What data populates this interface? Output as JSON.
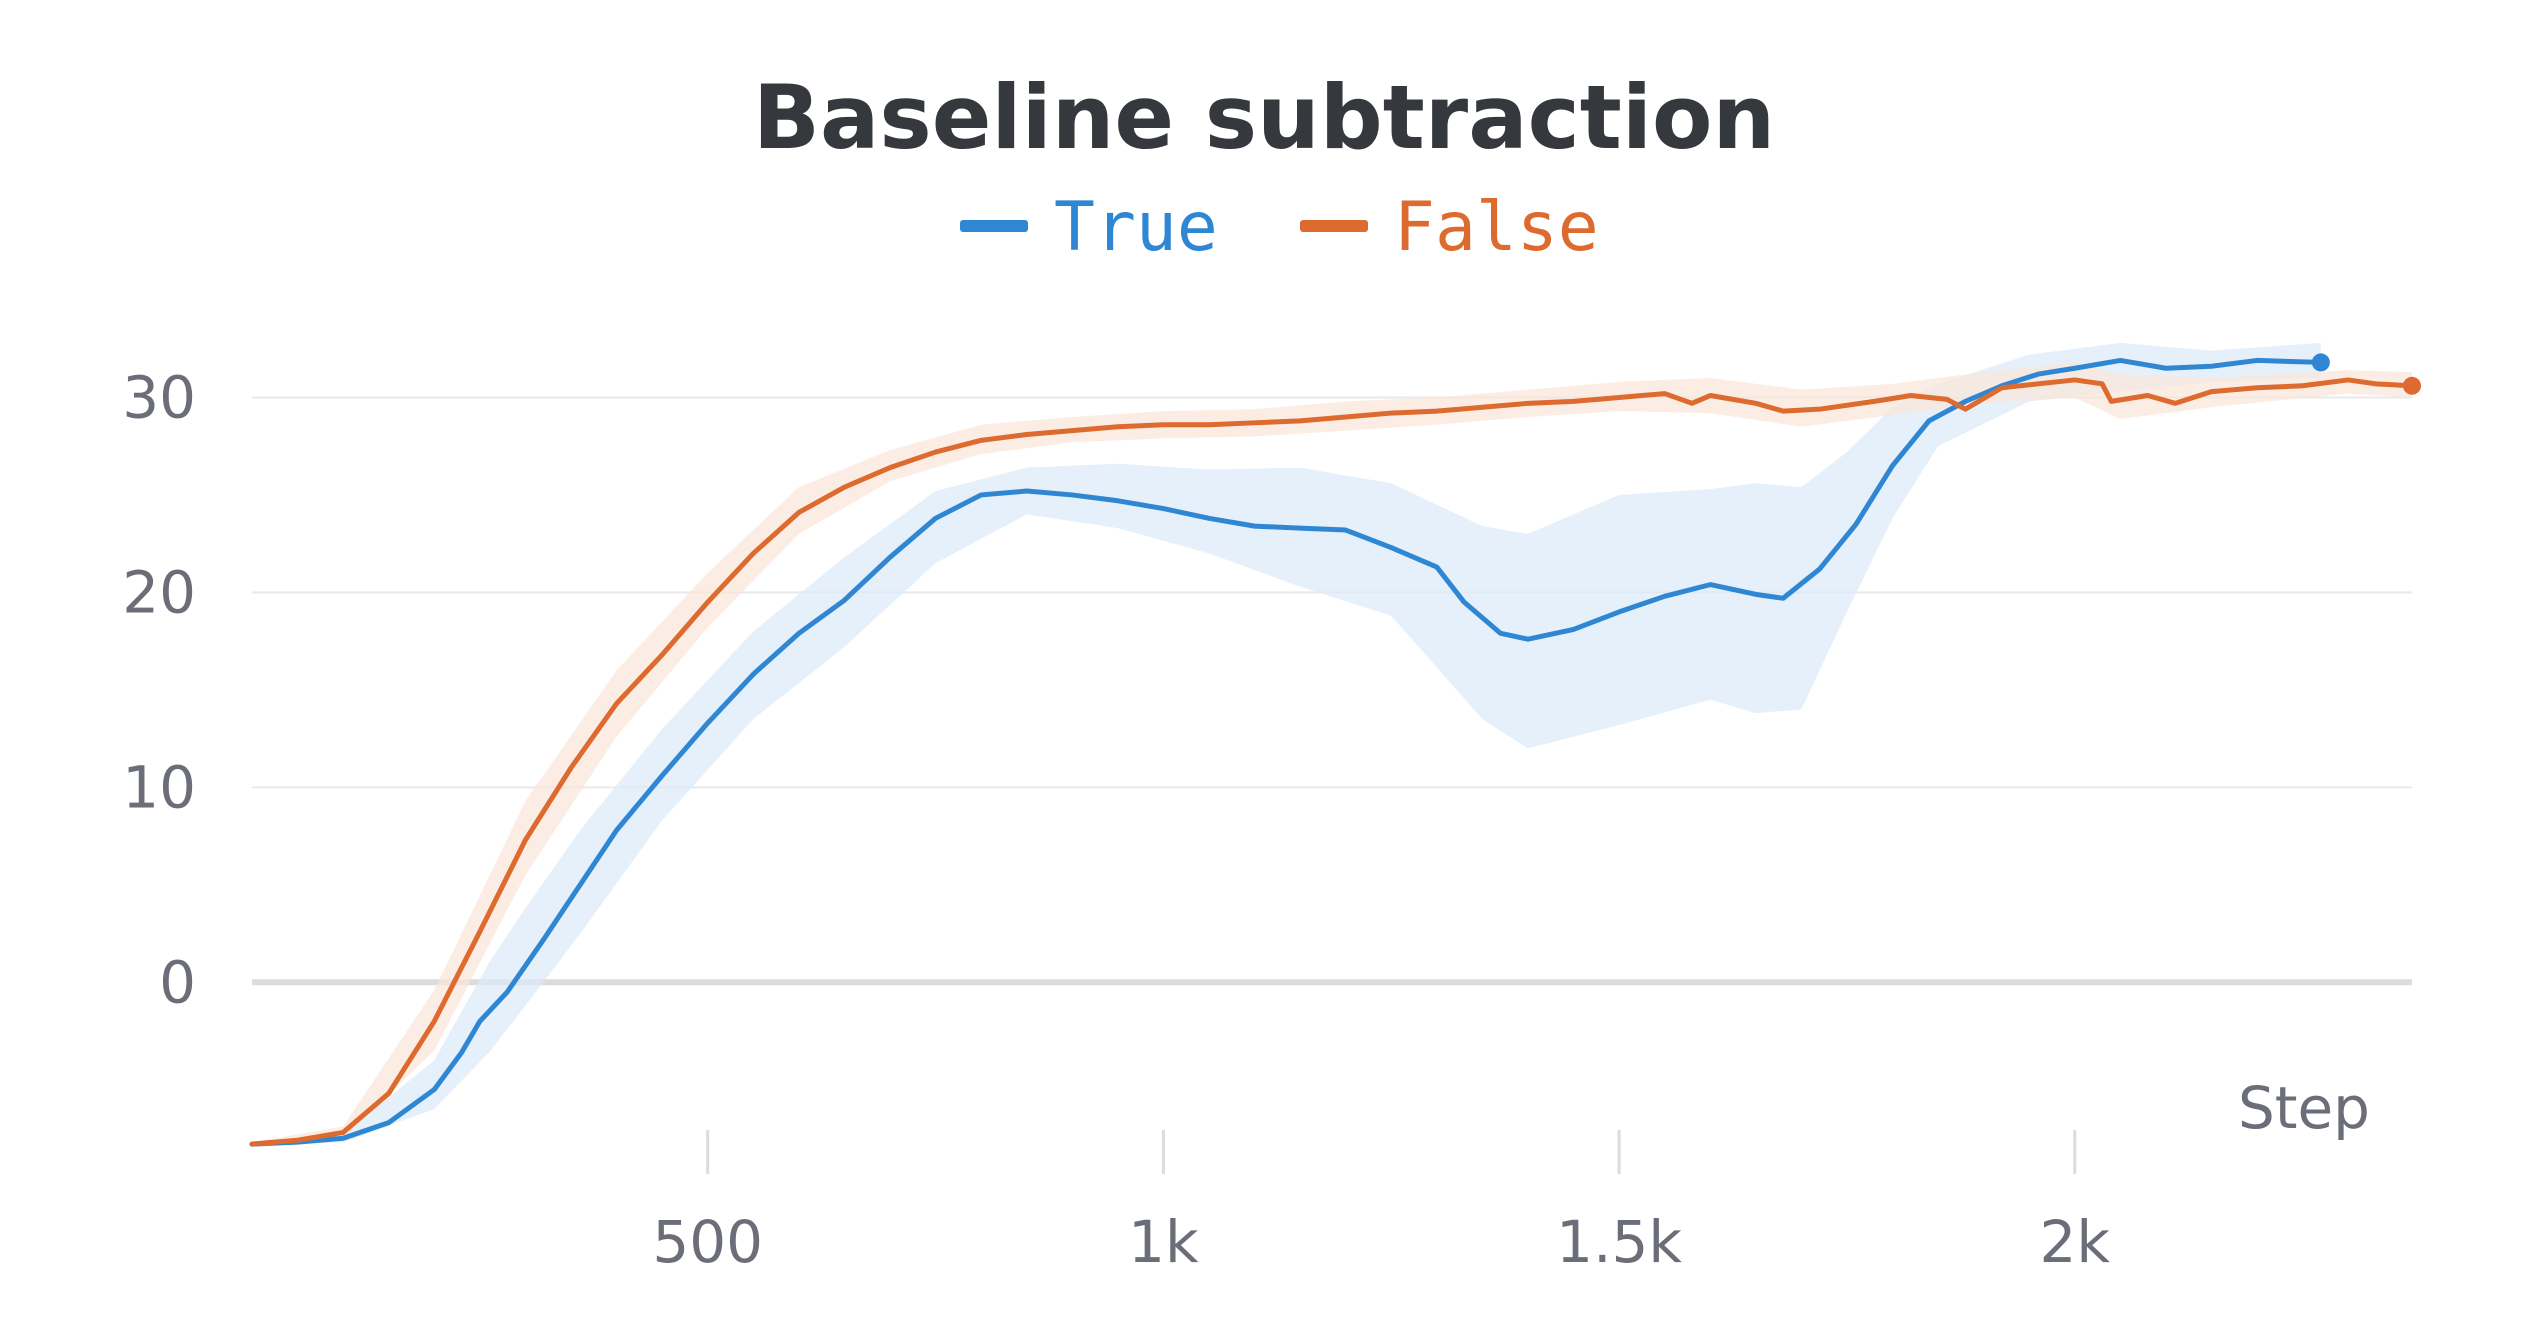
{
  "chart_data": {
    "type": "line",
    "title": "Baseline subtraction",
    "xlabel": "Step",
    "ylabel": "",
    "xlim": [
      0,
      2370
    ],
    "ylim": [
      -8.5,
      35
    ],
    "x_ticks": [
      500,
      1000,
      1500,
      2000
    ],
    "x_tick_labels": [
      "500",
      "1k",
      "1.5k",
      "2k"
    ],
    "y_ticks": [
      0,
      10,
      20,
      30
    ],
    "y_tick_labels": [
      "0",
      "10",
      "20",
      "30"
    ],
    "grid": "horizontal",
    "legend_position": "top-center",
    "series": [
      {
        "name": "True",
        "color": "#2f87d4",
        "band_color": "#dbe9f8",
        "points": [
          [
            0,
            -8.3
          ],
          [
            50,
            -8.2
          ],
          [
            100,
            -8.0
          ],
          [
            150,
            -7.2
          ],
          [
            200,
            -5.5
          ],
          [
            230,
            -3.6
          ],
          [
            250,
            -2.0
          ],
          [
            280,
            -0.5
          ],
          [
            320,
            2.2
          ],
          [
            360,
            5.0
          ],
          [
            400,
            7.8
          ],
          [
            450,
            10.6
          ],
          [
            500,
            13.3
          ],
          [
            550,
            15.8
          ],
          [
            600,
            17.9
          ],
          [
            650,
            19.6
          ],
          [
            700,
            21.8
          ],
          [
            750,
            23.8
          ],
          [
            800,
            25.0
          ],
          [
            850,
            25.2
          ],
          [
            900,
            25.0
          ],
          [
            950,
            24.7
          ],
          [
            1000,
            24.3
          ],
          [
            1050,
            23.8
          ],
          [
            1100,
            23.4
          ],
          [
            1150,
            23.3
          ],
          [
            1200,
            23.2
          ],
          [
            1250,
            22.3
          ],
          [
            1300,
            21.3
          ],
          [
            1330,
            19.5
          ],
          [
            1370,
            17.9
          ],
          [
            1400,
            17.6
          ],
          [
            1450,
            18.1
          ],
          [
            1500,
            19.0
          ],
          [
            1550,
            19.8
          ],
          [
            1600,
            20.4
          ],
          [
            1650,
            19.9
          ],
          [
            1680,
            19.7
          ],
          [
            1720,
            21.2
          ],
          [
            1760,
            23.5
          ],
          [
            1800,
            26.5
          ],
          [
            1840,
            28.8
          ],
          [
            1880,
            29.8
          ],
          [
            1920,
            30.6
          ],
          [
            1960,
            31.2
          ],
          [
            2000,
            31.5
          ],
          [
            2050,
            31.9
          ],
          [
            2100,
            31.5
          ],
          [
            2150,
            31.6
          ],
          [
            2200,
            31.9
          ],
          [
            2270,
            31.8
          ]
        ],
        "band": [
          [
            0,
            -8.4,
            -8.2
          ],
          [
            100,
            -8.2,
            -7.8
          ],
          [
            200,
            -6.5,
            -4.0
          ],
          [
            260,
            -3.6,
            1.0
          ],
          [
            300,
            -1.2,
            3.8
          ],
          [
            360,
            2.5,
            7.8
          ],
          [
            450,
            8.3,
            13.0
          ],
          [
            550,
            13.5,
            18.0
          ],
          [
            650,
            17.2,
            21.8
          ],
          [
            750,
            21.5,
            25.2
          ],
          [
            850,
            24.0,
            26.4
          ],
          [
            950,
            23.3,
            26.6
          ],
          [
            1050,
            22.0,
            26.3
          ],
          [
            1150,
            20.3,
            26.4
          ],
          [
            1250,
            18.8,
            25.6
          ],
          [
            1350,
            13.5,
            23.4
          ],
          [
            1400,
            12.0,
            23.0
          ],
          [
            1500,
            13.2,
            25.0
          ],
          [
            1600,
            14.5,
            25.3
          ],
          [
            1650,
            13.8,
            25.6
          ],
          [
            1700,
            14.0,
            25.4
          ],
          [
            1750,
            19.0,
            27.2
          ],
          [
            1800,
            23.8,
            29.5
          ],
          [
            1850,
            27.5,
            30.7
          ],
          [
            1950,
            29.8,
            32.2
          ],
          [
            2050,
            30.3,
            32.8
          ],
          [
            2150,
            30.8,
            32.4
          ],
          [
            2270,
            31.0,
            32.8
          ]
        ]
      },
      {
        "name": "False",
        "color": "#dd6a2e",
        "band_color": "#fbe5d9",
        "points": [
          [
            0,
            -8.3
          ],
          [
            50,
            -8.1
          ],
          [
            100,
            -7.7
          ],
          [
            150,
            -5.7
          ],
          [
            200,
            -2.0
          ],
          [
            250,
            2.6
          ],
          [
            300,
            7.3
          ],
          [
            350,
            11.0
          ],
          [
            400,
            14.3
          ],
          [
            450,
            16.8
          ],
          [
            500,
            19.5
          ],
          [
            550,
            22.0
          ],
          [
            600,
            24.1
          ],
          [
            650,
            25.4
          ],
          [
            700,
            26.4
          ],
          [
            750,
            27.2
          ],
          [
            800,
            27.8
          ],
          [
            850,
            28.1
          ],
          [
            900,
            28.3
          ],
          [
            950,
            28.5
          ],
          [
            1000,
            28.6
          ],
          [
            1050,
            28.6
          ],
          [
            1100,
            28.7
          ],
          [
            1150,
            28.8
          ],
          [
            1200,
            29.0
          ],
          [
            1250,
            29.2
          ],
          [
            1300,
            29.3
          ],
          [
            1350,
            29.5
          ],
          [
            1400,
            29.7
          ],
          [
            1450,
            29.8
          ],
          [
            1500,
            30.0
          ],
          [
            1550,
            30.2
          ],
          [
            1580,
            29.7
          ],
          [
            1600,
            30.1
          ],
          [
            1650,
            29.7
          ],
          [
            1680,
            29.3
          ],
          [
            1720,
            29.4
          ],
          [
            1780,
            29.8
          ],
          [
            1820,
            30.1
          ],
          [
            1860,
            29.9
          ],
          [
            1880,
            29.4
          ],
          [
            1920,
            30.5
          ],
          [
            1960,
            30.7
          ],
          [
            2000,
            30.9
          ],
          [
            2030,
            30.7
          ],
          [
            2040,
            29.8
          ],
          [
            2080,
            30.1
          ],
          [
            2110,
            29.7
          ],
          [
            2150,
            30.3
          ],
          [
            2200,
            30.5
          ],
          [
            2250,
            30.6
          ],
          [
            2300,
            30.9
          ],
          [
            2330,
            30.7
          ],
          [
            2370,
            30.6
          ]
        ],
        "band": [
          [
            0,
            -8.4,
            -8.2
          ],
          [
            100,
            -8.0,
            -7.4
          ],
          [
            200,
            -3.5,
            -0.4
          ],
          [
            300,
            5.5,
            9.3
          ],
          [
            400,
            12.6,
            16.0
          ],
          [
            500,
            18.2,
            21.0
          ],
          [
            600,
            23.0,
            25.4
          ],
          [
            700,
            25.7,
            27.3
          ],
          [
            800,
            27.1,
            28.6
          ],
          [
            900,
            27.7,
            29.0
          ],
          [
            1000,
            27.9,
            29.3
          ],
          [
            1100,
            28.0,
            29.4
          ],
          [
            1200,
            28.3,
            29.8
          ],
          [
            1300,
            28.6,
            30.0
          ],
          [
            1400,
            29.0,
            30.4
          ],
          [
            1500,
            29.3,
            30.8
          ],
          [
            1600,
            29.2,
            31.0
          ],
          [
            1700,
            28.5,
            30.4
          ],
          [
            1800,
            29.1,
            30.7
          ],
          [
            1900,
            29.7,
            31.3
          ],
          [
            2000,
            30.0,
            31.8
          ],
          [
            2050,
            28.9,
            31.2
          ],
          [
            2150,
            29.5,
            31.0
          ],
          [
            2300,
            30.2,
            31.4
          ],
          [
            2370,
            30.0,
            31.3
          ]
        ]
      }
    ]
  }
}
